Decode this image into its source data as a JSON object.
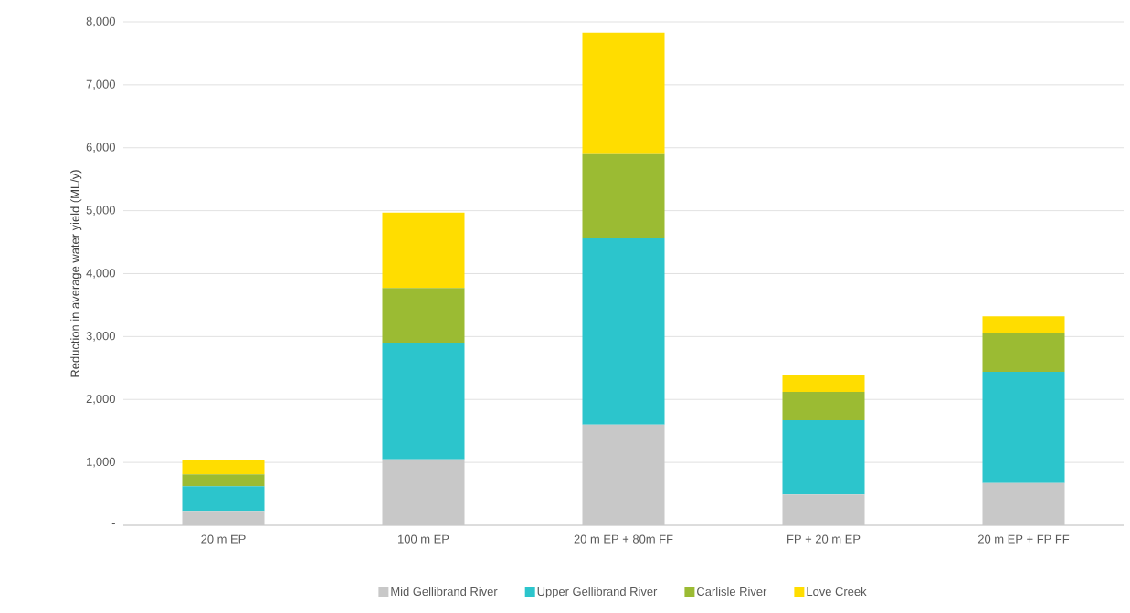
{
  "chart_data": {
    "type": "bar",
    "stacked": true,
    "ylabel": "Reduction in average water yield (ML/y)",
    "categories": [
      "20 m EP",
      "100 m EP",
      "20 m EP + 80m FF",
      "FP + 20 m EP",
      "20 m EP + FP FF"
    ],
    "series": [
      {
        "name": "Mid Gellibrand River",
        "color": "#c8c8c8",
        "values": [
          230,
          1050,
          1600,
          490,
          670
        ]
      },
      {
        "name": "Upper Gellibrand River",
        "color": "#2cc5cc",
        "values": [
          390,
          1850,
          2960,
          1180,
          1770
        ]
      },
      {
        "name": "Carlisle River",
        "color": "#9bbb33",
        "values": [
          190,
          870,
          1340,
          450,
          620
        ]
      },
      {
        "name": "Love Creek",
        "color": "#ffdd00",
        "values": [
          230,
          1200,
          1930,
          260,
          260
        ]
      }
    ],
    "ylim": [
      0,
      8000
    ],
    "yticks": [
      {
        "value": 0,
        "label": "-"
      },
      {
        "value": 1000,
        "label": "1,000"
      },
      {
        "value": 2000,
        "label": "2,000"
      },
      {
        "value": 3000,
        "label": "3,000"
      },
      {
        "value": 4000,
        "label": "4,000"
      },
      {
        "value": 5000,
        "label": "5,000"
      },
      {
        "value": 6000,
        "label": "6,000"
      },
      {
        "value": 7000,
        "label": "7,000"
      },
      {
        "value": 8000,
        "label": "8,000"
      }
    ],
    "grid": "y",
    "legend": "bottom"
  }
}
